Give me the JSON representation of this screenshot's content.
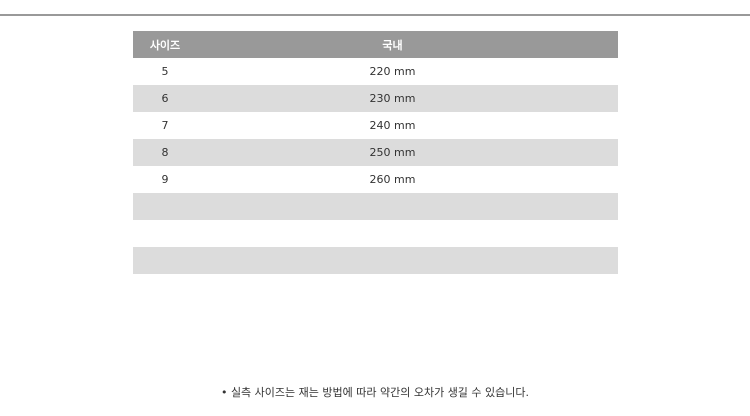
{
  "table": {
    "headers": [
      "사이즈",
      "국내"
    ],
    "rows": [
      [
        "5",
        "220 mm"
      ],
      [
        "6",
        "230 mm"
      ],
      [
        "7",
        "240 mm"
      ],
      [
        "8",
        "250 mm"
      ],
      [
        "9",
        "260 mm"
      ],
      [
        "",
        ""
      ],
      [
        "",
        ""
      ],
      [
        "",
        ""
      ]
    ]
  },
  "note": "• 실측 사이즈는 재는 방법에 따라 약간의 오차가 생길 수 있습니다."
}
